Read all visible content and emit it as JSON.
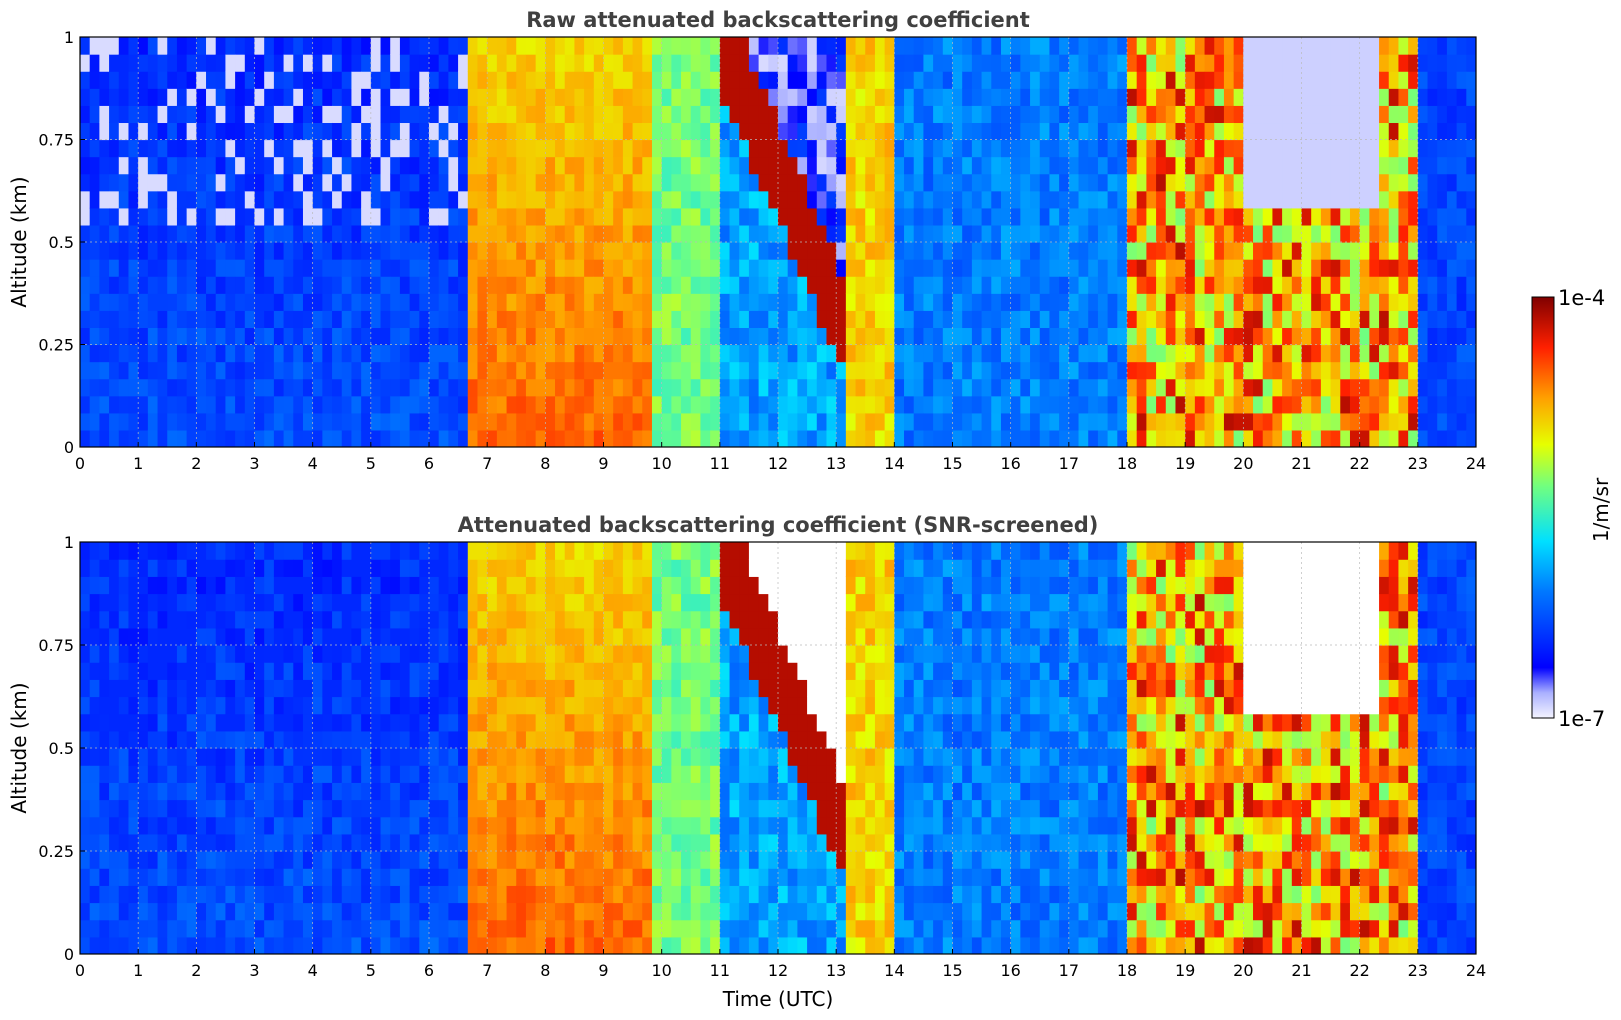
{
  "chart_data": [
    {
      "type": "heatmap",
      "title": "Raw attenuated backscattering coefficient",
      "xlabel": "",
      "ylabel": "Altitude (km)",
      "xlim": [
        0,
        24
      ],
      "ylim": [
        0,
        1
      ],
      "x_ticks": [
        "0",
        "1",
        "2",
        "3",
        "4",
        "5",
        "6",
        "7",
        "8",
        "9",
        "10",
        "11",
        "12",
        "13",
        "14",
        "15",
        "16",
        "17",
        "18",
        "19",
        "20",
        "21",
        "22",
        "23",
        "24"
      ],
      "y_ticks": [
        "0",
        "0.25",
        "0.5",
        "0.75",
        "1"
      ],
      "grid": true,
      "screened": false,
      "regions": [
        {
          "x": [
            0.0,
            6.7
          ],
          "level": 0.22,
          "note": "clear-air molecular signal"
        },
        {
          "x": [
            6.7,
            9.8
          ],
          "level": 0.78,
          "note": "strong backscatter column"
        },
        {
          "x": [
            9.8,
            11.0
          ],
          "level": 0.55
        },
        {
          "x": [
            11.0,
            13.1
          ],
          "level": 0.45,
          "feature": "descending cloud layer 1.0 to 0.3 km"
        },
        {
          "x": [
            13.1,
            14.0
          ],
          "level": 0.7
        },
        {
          "x": [
            14.0,
            18.0
          ],
          "level": 0.3
        },
        {
          "x": [
            18.0,
            23.0
          ],
          "level": 0.65,
          "feature": "cloud layers 0.1 to 1.0 km"
        },
        {
          "x": [
            23.0,
            24.0
          ],
          "level": 0.2
        }
      ]
    },
    {
      "type": "heatmap",
      "title": "Attenuated backscattering coefficient (SNR-screened)",
      "xlabel": "Time (UTC)",
      "ylabel": "Altitude (km)",
      "xlim": [
        0,
        24
      ],
      "ylim": [
        0,
        1
      ],
      "x_ticks": [
        "0",
        "1",
        "2",
        "3",
        "4",
        "5",
        "6",
        "7",
        "8",
        "9",
        "10",
        "11",
        "12",
        "13",
        "14",
        "15",
        "16",
        "17",
        "18",
        "19",
        "20",
        "21",
        "22",
        "23",
        "24"
      ],
      "y_ticks": [
        "0",
        "0.25",
        "0.5",
        "0.75",
        "1"
      ],
      "grid": true,
      "screened": true,
      "regions": [
        {
          "x": [
            0.0,
            6.7
          ],
          "level": 0.18
        },
        {
          "x": [
            6.7,
            9.8
          ],
          "level": 0.78
        },
        {
          "x": [
            9.8,
            11.0
          ],
          "level": 0.55
        },
        {
          "x": [
            11.0,
            13.1
          ],
          "level": 0.45
        },
        {
          "x": [
            13.1,
            14.0
          ],
          "level": 0.7
        },
        {
          "x": [
            14.0,
            18.0
          ],
          "level": 0.3
        },
        {
          "x": [
            18.0,
            23.0
          ],
          "level": 0.65
        },
        {
          "x": [
            23.0,
            24.0
          ],
          "level": 0.2
        }
      ]
    }
  ],
  "colorbar": {
    "label": "1/m/sr",
    "max_label": "1e-4",
    "min_label": "1e-7",
    "colormap": "jet",
    "scale": "log"
  }
}
